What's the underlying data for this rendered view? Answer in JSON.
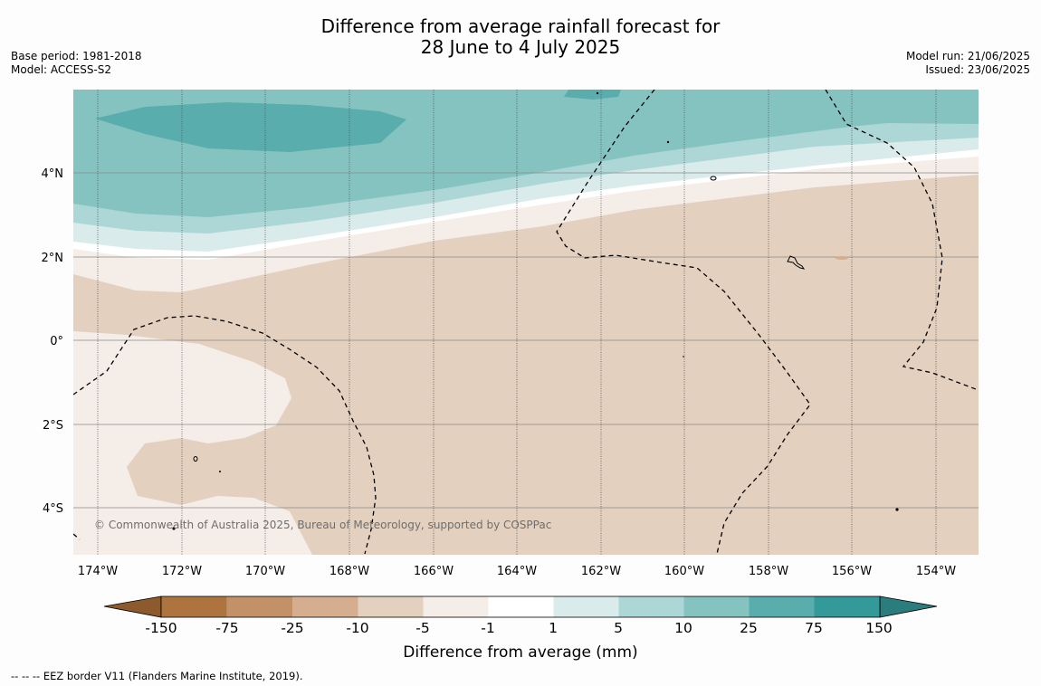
{
  "title": {
    "line1": "Difference from average rainfall forecast for",
    "line2": "28 June to 4 July 2025"
  },
  "left_info": {
    "base_period": "Base period: 1981-2018",
    "model": "Model: ACCESS-S2"
  },
  "right_info": {
    "model_run": "Model run: 21/06/2025",
    "issued": "Issued: 23/06/2025"
  },
  "map": {
    "lat_labels": [
      "4°N",
      "2°N",
      "0°",
      "2°S",
      "4°S"
    ],
    "lon_labels": [
      "174°W",
      "172°W",
      "170°W",
      "168°W",
      "166°W",
      "164°W",
      "162°W",
      "160°W",
      "158°W",
      "156°W",
      "154°W"
    ],
    "copyright": "© Commonwealth of Australia 2025, Bureau of Meteorology, supported by COSPPac"
  },
  "colorbar": {
    "title": "Difference from average (mm)",
    "ticks": [
      "-150",
      "-75",
      "-25",
      "-10",
      "-5",
      "-1",
      "1",
      "5",
      "10",
      "25",
      "75",
      "150"
    ],
    "colors": [
      "#8c5a2c",
      "#ad7440",
      "#c29168",
      "#d4ae8f",
      "#e3d0bf",
      "#f5ede8",
      "#ffffff",
      "#d9ebea",
      "#add7d6",
      "#85c3c1",
      "#5aadad",
      "#339a99",
      "#2a7d7c"
    ]
  },
  "footnote": "--  --  -- EEZ border V11 (Flanders Marine Institute, 2019)."
}
